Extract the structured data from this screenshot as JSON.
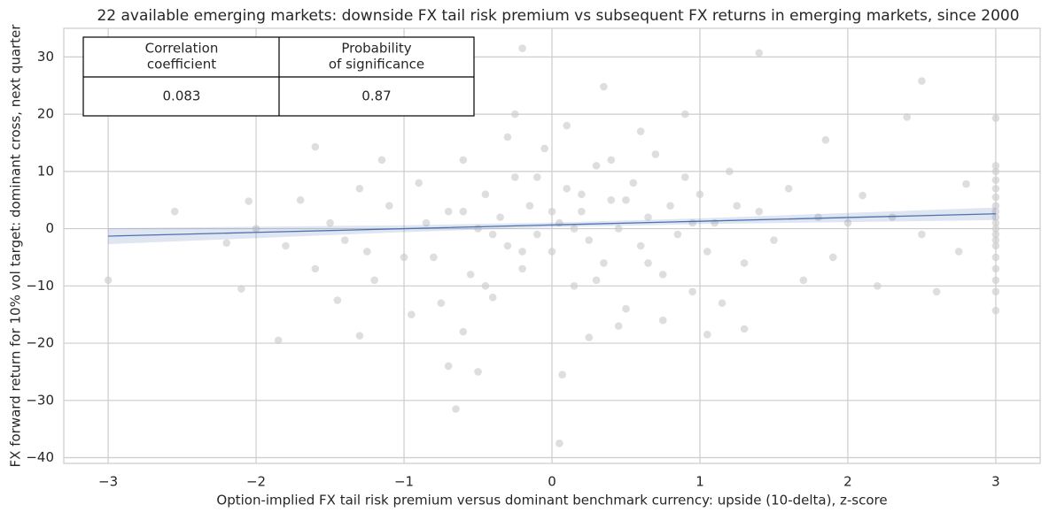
{
  "chart_data": {
    "type": "scatter",
    "title": "22 available emerging markets: downside FX tail risk premium vs subsequent FX returns in emerging markets, since 2000",
    "x_label": "Option-implied FX tail risk premium versus dominant benchmark currency: upside (10-delta), z-score",
    "y_label": "FX forward return for 10% vol target: dominant cross, next quarter",
    "xlim": [
      -3.3,
      3.3
    ],
    "ylim": [
      -41,
      35
    ],
    "xticks": [
      {
        "value": -3,
        "label": "−3"
      },
      {
        "value": -2,
        "label": "−2"
      },
      {
        "value": -1,
        "label": "−1"
      },
      0,
      1,
      2,
      3
    ],
    "yticks": [
      {
        "value": -40,
        "label": "−40"
      },
      {
        "value": -30,
        "label": "−30"
      },
      {
        "value": -20,
        "label": "−20"
      },
      {
        "value": -10,
        "label": "−10"
      },
      0,
      10,
      20,
      30
    ],
    "grid": true,
    "color": "#cccccc",
    "x": [
      -3,
      -2.55,
      -0.2,
      1.4,
      2.5,
      0.05,
      -0.65,
      0.35,
      -0.5,
      -0.7,
      0.07,
      -1.85,
      -1.3,
      1.05,
      1.3,
      2.2,
      2.1,
      2.8,
      2.75,
      -2.1,
      -2.05,
      -1.6,
      -1.45,
      1.85,
      2.4,
      3,
      3,
      3,
      3,
      3,
      3,
      3,
      3,
      3,
      3,
      3,
      3,
      3,
      3,
      3,
      3,
      3,
      3,
      3,
      -0.9,
      -0.8,
      -0.7,
      -0.6,
      -0.55,
      -0.5,
      -0.45,
      -0.4,
      -0.35,
      -0.3,
      -0.25,
      -0.2,
      -0.15,
      -0.1,
      -0.05,
      0,
      0.05,
      0.1,
      0.15,
      0.2,
      0.25,
      0.3,
      0.35,
      0.4,
      0.45,
      0.5,
      0.55,
      0.6,
      0.65,
      0.7,
      0.75,
      0.8,
      0.85,
      0.9,
      0.95,
      1.0,
      1.05,
      1.1,
      1.2,
      1.3,
      1.4,
      1.5,
      1.6,
      1.7,
      1.8,
      1.9,
      2.0,
      2.3,
      2.5,
      2.6,
      -1.0,
      -1.1,
      -1.2,
      -1.3,
      -1.4,
      -1.5,
      -1.6,
      -1.7,
      -1.8,
      -2.0,
      -2.2,
      -0.95,
      -0.6,
      -0.3,
      0.1,
      0.45,
      0.6,
      0.9,
      -0.25,
      0.25,
      0.75,
      -0.75,
      -0.2,
      0.0,
      0.2,
      -0.1,
      0.3,
      -0.4,
      0.5,
      -0.6,
      1.15,
      -1.15,
      0.4,
      -0.45,
      0.15,
      0.65,
      -0.85,
      1.25,
      -1.25,
      0.95
    ],
    "y": [
      -9,
      3,
      31.5,
      30.7,
      25.8,
      -37.5,
      -31.5,
      24.8,
      -25,
      -24,
      -25.5,
      -19.5,
      -18.7,
      -18.5,
      -17.5,
      -10,
      5.8,
      7.8,
      -4,
      -10.5,
      4.8,
      14.3,
      -12.5,
      15.5,
      19.5,
      11,
      10,
      8.5,
      7,
      5.5,
      4,
      3,
      2,
      1,
      0,
      -1,
      -2,
      -3,
      -5,
      -7,
      -9,
      -11,
      -14.3,
      19.3,
      8,
      -5,
      3,
      12,
      -8,
      0,
      6,
      -12,
      2,
      -3,
      9,
      -7,
      4,
      -1,
      14,
      -4,
      1,
      7,
      -10,
      3,
      -2,
      11,
      -6,
      5,
      0,
      -14,
      8,
      -3,
      2,
      13,
      -8,
      4,
      -1,
      9,
      -11,
      6,
      -4,
      1,
      10,
      -6,
      3,
      -2,
      7,
      -9,
      2,
      -5,
      1,
      2,
      -1,
      -11,
      -5,
      4,
      -9,
      7,
      -2,
      1,
      -7,
      5,
      -3,
      0,
      -2.5,
      -15,
      -18,
      16,
      18,
      -17,
      17,
      20,
      20,
      -19,
      -16,
      -13,
      -4,
      3,
      6,
      9,
      -9,
      -1,
      5,
      3,
      -13,
      12,
      12,
      -10,
      0,
      -6,
      1,
      4,
      -4,
      1
    ],
    "regression": {
      "color": "#4c72b0",
      "x": [
        -3,
        -2,
        -1,
        0,
        1,
        2,
        3
      ],
      "y": [
        -1.3,
        -0.65,
        0,
        0.65,
        1.3,
        1.95,
        2.6
      ],
      "lower": [
        -2.7,
        -1.65,
        -0.6,
        0.25,
        0.8,
        1.15,
        1.5
      ],
      "upper": [
        0.1,
        0.35,
        0.6,
        1.05,
        1.8,
        2.75,
        3.7
      ]
    },
    "table": {
      "header": [
        [
          "Correlation",
          "coefficient"
        ],
        [
          "Probability",
          "of significance"
        ]
      ],
      "rows": [
        [
          "0.083",
          "0.87"
        ]
      ]
    }
  }
}
